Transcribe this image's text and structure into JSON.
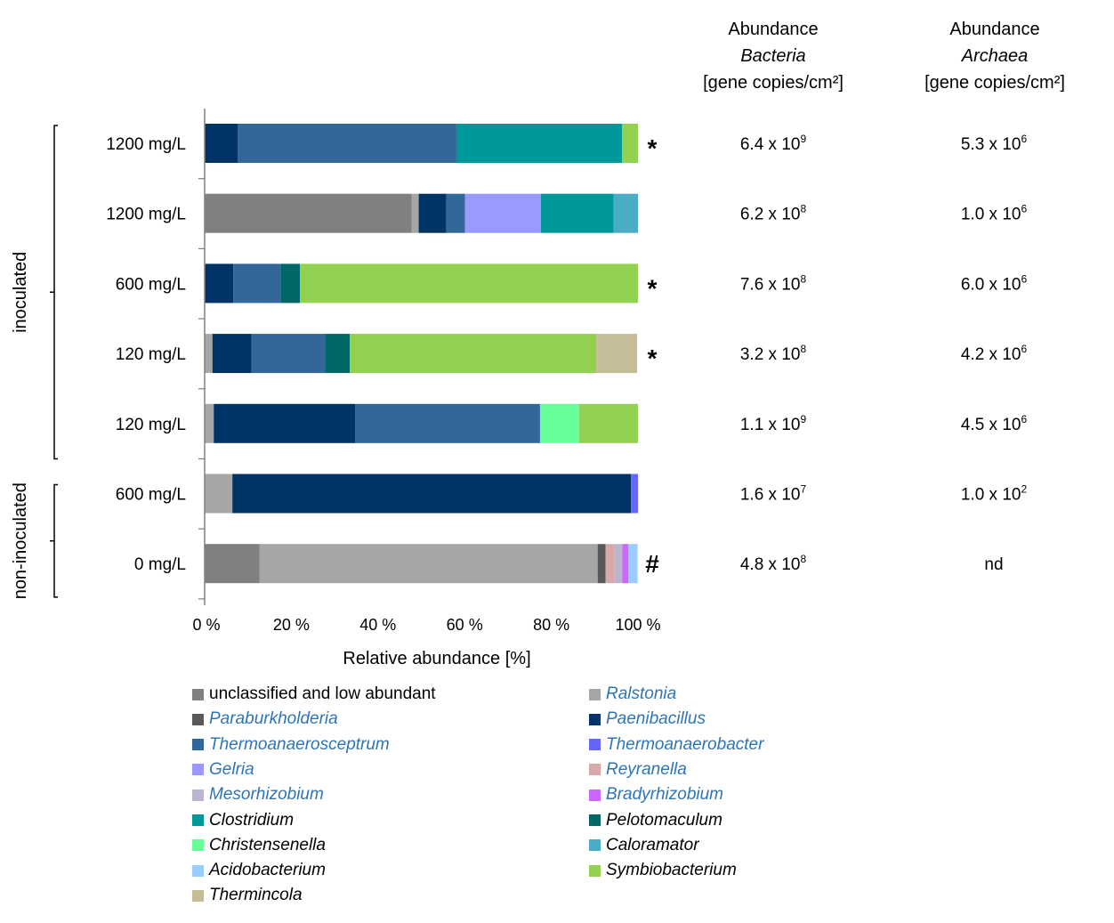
{
  "chart_data": {
    "type": "bar",
    "orientation": "horizontal",
    "stacked": true,
    "xlabel": "Relative abundance [%]",
    "xlim": [
      0,
      100
    ],
    "x_ticks": [
      "0 %",
      "20 %",
      "40 %",
      "60 %",
      "80 %",
      "100 %"
    ],
    "x_tick_values": [
      0,
      20,
      40,
      60,
      80,
      100
    ],
    "grid": false,
    "legend_position": "bottom",
    "groups": [
      {
        "label": "inoculated",
        "rows": [
          0,
          1,
          2,
          3,
          4
        ]
      },
      {
        "label": "non-inoculated",
        "rows": [
          5,
          6
        ]
      }
    ],
    "categories": [
      "1200 mg/L",
      "1200 mg/L",
      "600 mg/L",
      "120 mg/L",
      "120 mg/L",
      "600 mg/L",
      "0 mg/L"
    ],
    "markers": [
      "*",
      "",
      "*",
      "*",
      "",
      "",
      "#"
    ],
    "series": [
      {
        "name": "unclassified and low abundant",
        "color": "#808080",
        "italic": false,
        "label_color": "#000000",
        "values": [
          0,
          47.8,
          0,
          0,
          0,
          0,
          12.7
        ]
      },
      {
        "name": "Ralstonia",
        "color": "#a6a6a6",
        "italic": true,
        "label_color": "#2e75b6",
        "values": [
          0,
          1.6,
          0,
          1.8,
          2.1,
          6.4,
          78.0
        ]
      },
      {
        "name": "Paraburkholderia",
        "color": "#595959",
        "italic": true,
        "label_color": "#2e75b6",
        "values": [
          0,
          0,
          0,
          0,
          0,
          0,
          1.8
        ]
      },
      {
        "name": "Paenibacillus",
        "color": "#003366",
        "italic": true,
        "label_color": "#2e75b6",
        "values": [
          7.6,
          6.4,
          6.6,
          9.0,
          32.6,
          92.0,
          0
        ]
      },
      {
        "name": "Thermoanaerosceptrum",
        "color": "#336699",
        "italic": true,
        "label_color": "#2e75b6",
        "values": [
          50.5,
          4.3,
          10.9,
          17.0,
          42.7,
          0,
          0
        ]
      },
      {
        "name": "Thermoanaerobacter",
        "color": "#6666ff",
        "italic": true,
        "label_color": "#2e75b6",
        "values": [
          0,
          0,
          0,
          0,
          0,
          1.6,
          0
        ]
      },
      {
        "name": "Gelria",
        "color": "#9999ff",
        "italic": true,
        "label_color": "#2e75b6",
        "values": [
          0,
          17.5,
          0,
          0,
          0,
          0,
          0
        ]
      },
      {
        "name": "Reyranella",
        "color": "#d9a9a9",
        "italic": true,
        "label_color": "#2e75b6",
        "values": [
          0,
          0,
          0,
          0,
          0,
          0,
          2.1
        ]
      },
      {
        "name": "Mesorhizobium",
        "color": "#bbb3cf",
        "italic": true,
        "label_color": "#2e75b6",
        "values": [
          0,
          0,
          0,
          0,
          0,
          0,
          1.8
        ]
      },
      {
        "name": "Bradyrhizobium",
        "color": "#cc66ff",
        "italic": true,
        "label_color": "#2e75b6",
        "values": [
          0,
          0,
          0,
          0,
          0,
          0,
          1.4
        ]
      },
      {
        "name": "Clostridium",
        "color": "#009999",
        "italic": true,
        "label_color": "#000000",
        "values": [
          38.2,
          16.8,
          0,
          0,
          0,
          0,
          0
        ]
      },
      {
        "name": "Pelotomaculum",
        "color": "#006666",
        "italic": true,
        "label_color": "#000000",
        "values": [
          0,
          0,
          4.5,
          5.7,
          0,
          0,
          0
        ]
      },
      {
        "name": "Christensenella",
        "color": "#66ff99",
        "italic": true,
        "label_color": "#000000",
        "values": [
          0,
          0,
          0,
          0,
          9.0,
          0,
          0
        ]
      },
      {
        "name": "Caloramator",
        "color": "#4bacc6",
        "italic": true,
        "label_color": "#000000",
        "values": [
          0,
          5.6,
          0,
          0,
          0,
          0,
          0
        ]
      },
      {
        "name": "Acidobacterium",
        "color": "#99ccff",
        "italic": true,
        "label_color": "#000000",
        "values": [
          0,
          0,
          0,
          0,
          0,
          0,
          2.1
        ]
      },
      {
        "name": "Symbiobacterium",
        "color": "#92d050",
        "italic": true,
        "label_color": "#000000",
        "values": [
          3.7,
          0,
          78.0,
          56.9,
          13.6,
          0,
          0
        ]
      },
      {
        "name": "Thermincola",
        "color": "#c4bd97",
        "italic": true,
        "label_color": "#000000",
        "values": [
          0,
          0,
          0,
          9.4,
          0,
          0,
          0
        ]
      }
    ],
    "legend_order": [
      "unclassified and low abundant",
      "Ralstonia",
      "Paraburkholderia",
      "Paenibacillus",
      "Thermoanaerosceptrum",
      "Thermoanaerobacter",
      "Gelria",
      "Reyranella",
      "Mesorhizobium",
      "Bradyrhizobium",
      "Clostridium",
      "Pelotomaculum",
      "Christensenella",
      "Caloramator",
      "Acidobacterium",
      "Symbiobacterium",
      "Thermincola"
    ]
  },
  "table": {
    "bacteria_header": {
      "line1": "Abundance",
      "line2": "Bacteria",
      "line3": "[gene copies/cm²]"
    },
    "archaea_header": {
      "line1": "Abundance",
      "line2": "Archaea",
      "line3": "[gene copies/cm²]"
    },
    "rows": [
      {
        "bacteria": {
          "mantissa": "6.4 x 10",
          "exp": "9"
        },
        "archaea": {
          "mantissa": "5.3 x 10",
          "exp": "6"
        }
      },
      {
        "bacteria": {
          "mantissa": "6.2 x 10",
          "exp": "8"
        },
        "archaea": {
          "mantissa": "1.0 x 10",
          "exp": "6"
        }
      },
      {
        "bacteria": {
          "mantissa": "7.6 x 10",
          "exp": "8"
        },
        "archaea": {
          "mantissa": "6.0 x 10",
          "exp": "6"
        }
      },
      {
        "bacteria": {
          "mantissa": "3.2 x 10",
          "exp": "8"
        },
        "archaea": {
          "mantissa": "4.2 x 10",
          "exp": "6"
        }
      },
      {
        "bacteria": {
          "mantissa": "1.1 x 10",
          "exp": "9"
        },
        "archaea": {
          "mantissa": "4.5 x 10",
          "exp": "6"
        }
      },
      {
        "bacteria": {
          "mantissa": "1.6 x 10",
          "exp": "7"
        },
        "archaea": {
          "mantissa": "1.0 x 10",
          "exp": "2"
        }
      },
      {
        "bacteria": {
          "mantissa": "4.8 x 10",
          "exp": "8"
        },
        "archaea": {
          "mantissa": "nd",
          "exp": ""
        }
      }
    ]
  }
}
